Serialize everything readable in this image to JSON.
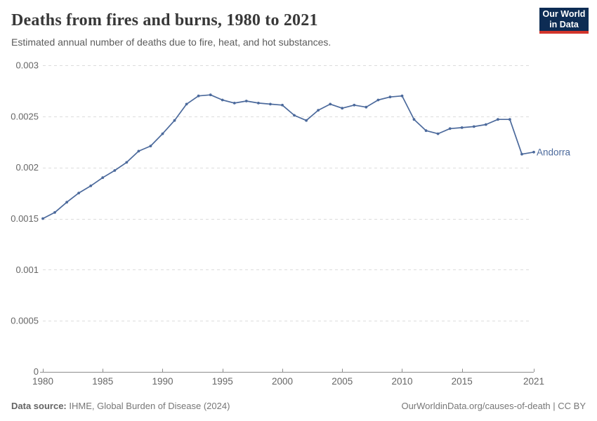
{
  "header": {
    "title": "Deaths from fires and burns, 1980 to 2021",
    "subtitle": "Estimated annual number of deaths due to fire, heat, and hot substances.",
    "logo_line1": "Our World",
    "logo_line2": "in Data"
  },
  "footer": {
    "source_label": "Data source:",
    "source_text": " IHME, Global Burden of Disease (2024)",
    "citation": "OurWorldinData.org/causes-of-death | CC BY"
  },
  "chart_data": {
    "type": "line",
    "title": "Deaths from fires and burns, 1980 to 2021",
    "subtitle": "Estimated annual number of deaths due to fire, heat, and hot substances.",
    "xlabel": "",
    "ylabel": "",
    "xlim": [
      1980,
      2021
    ],
    "ylim": [
      0,
      0.003
    ],
    "grid": true,
    "legend_position": "end-of-line",
    "x_tick_labels": [
      "1980",
      "1985",
      "1990",
      "1995",
      "2000",
      "2005",
      "2010",
      "2015",
      "2021"
    ],
    "x_ticks": [
      1980,
      1985,
      1990,
      1995,
      2000,
      2005,
      2010,
      2015,
      2021
    ],
    "y_ticks": [
      0,
      0.0005,
      0.001,
      0.0015,
      0.002,
      0.0025,
      0.003
    ],
    "y_tick_labels": [
      "0",
      "0.0005",
      "0.001",
      "0.0015",
      "0.002",
      "0.0025",
      "0.003"
    ],
    "x": [
      1980,
      1981,
      1982,
      1983,
      1984,
      1985,
      1986,
      1987,
      1988,
      1989,
      1990,
      1991,
      1992,
      1993,
      1994,
      1995,
      1996,
      1997,
      1998,
      1999,
      2000,
      2001,
      2002,
      2003,
      2004,
      2005,
      2006,
      2007,
      2008,
      2009,
      2010,
      2011,
      2012,
      2013,
      2014,
      2015,
      2016,
      2017,
      2018,
      2019,
      2020,
      2021
    ],
    "series": [
      {
        "name": "Andorra",
        "color": "#4C6A9C",
        "values": [
          0.0015,
          0.00156,
          0.00166,
          0.00175,
          0.00182,
          0.0019,
          0.00197,
          0.00205,
          0.00216,
          0.00221,
          0.00233,
          0.00246,
          0.00262,
          0.0027,
          0.00271,
          0.00266,
          0.00263,
          0.00265,
          0.00263,
          0.00262,
          0.00261,
          0.00251,
          0.00246,
          0.00256,
          0.00262,
          0.00258,
          0.00261,
          0.00259,
          0.00266,
          0.00269,
          0.0027,
          0.00247,
          0.00236,
          0.00233,
          0.00238,
          0.00239,
          0.0024,
          0.00242,
          0.00247,
          0.00247,
          0.00213,
          0.00215
        ]
      }
    ]
  },
  "colors": {
    "line": "#4C6A9C",
    "grid": "#dcdcdc",
    "axis": "#8d8d8d",
    "tick_text": "#666666",
    "title_text": "#383838",
    "subtitle_text": "#5b5b5b",
    "footer_text": "#777777",
    "logo_bg": "#0d2c54",
    "logo_red": "#d2352c"
  }
}
